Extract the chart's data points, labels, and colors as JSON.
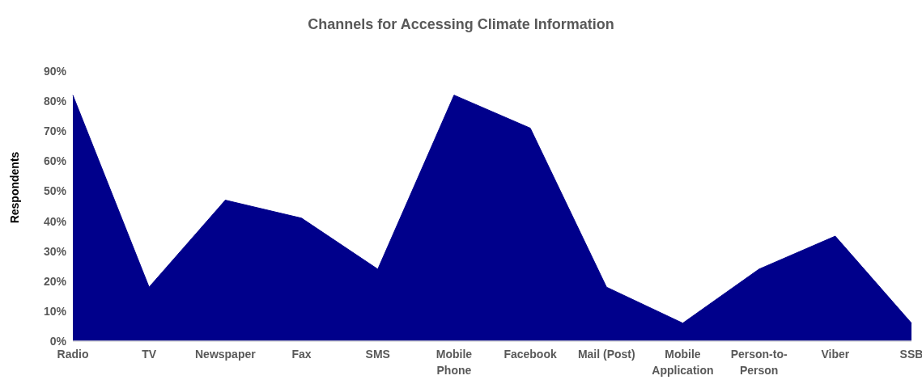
{
  "chart_data": {
    "type": "area",
    "title": "Channels for Accessing Climate Information",
    "ylabel": "Respondents",
    "categories": [
      "Radio",
      "TV",
      "Newspaper",
      "Fax",
      "SMS",
      "Mobile Phone",
      "Facebook",
      "Mail (Post)",
      "Mobile Application",
      "Person-to-Person",
      "Viber",
      "SSB"
    ],
    "values": [
      82,
      18,
      47,
      41,
      24,
      82,
      71,
      18,
      6,
      24,
      35,
      6
    ],
    "color": "#00008b",
    "ylim": [
      0,
      90
    ],
    "yticks": [
      {
        "value": 0,
        "label": "0%"
      },
      {
        "value": 10,
        "label": "10%"
      },
      {
        "value": 20,
        "label": "20%"
      },
      {
        "value": 30,
        "label": "30%"
      },
      {
        "value": 40,
        "label": "40%"
      },
      {
        "value": 50,
        "label": "50%"
      },
      {
        "value": 60,
        "label": "60%"
      },
      {
        "value": 70,
        "label": "70%"
      },
      {
        "value": 80,
        "label": "80%"
      },
      {
        "value": 90,
        "label": "90%"
      }
    ]
  }
}
